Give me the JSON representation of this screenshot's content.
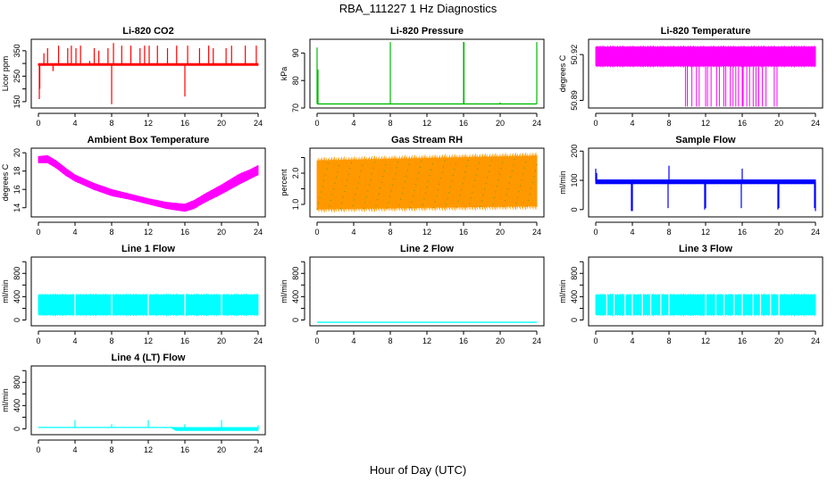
{
  "figure": {
    "title": "RBA_111227  1 Hz Diagnostics",
    "xlabel": "Hour of Day (UTC)"
  },
  "chart_data": [
    {
      "type": "line",
      "title": "Li-820 CO2",
      "ylabel": "Licor ppm",
      "color": "#ff0000",
      "xlim": [
        0,
        24
      ],
      "xticks": [
        0,
        4,
        8,
        12,
        16,
        20,
        24
      ],
      "ylim": [
        125,
        395
      ],
      "yticks": [
        150,
        200,
        250,
        300,
        350
      ],
      "ytick_labels": [
        "150",
        "250",
        "350"
      ],
      "series": [
        {
          "style": "band",
          "x": [
            0,
            24
          ],
          "low": [
            292,
            292
          ],
          "high": [
            300,
            300
          ]
        }
      ],
      "spikes": [
        [
          0.1,
          160
        ],
        [
          0.15,
          200
        ],
        [
          0.6,
          340
        ],
        [
          1.0,
          360
        ],
        [
          1.6,
          270
        ],
        [
          2.2,
          370
        ],
        [
          3.2,
          360
        ],
        [
          3.6,
          370
        ],
        [
          4.1,
          360
        ],
        [
          4.6,
          370
        ],
        [
          5.6,
          310
        ],
        [
          6.1,
          360
        ],
        [
          6.6,
          350
        ],
        [
          7.6,
          360
        ],
        [
          8.0,
          140
        ],
        [
          8.2,
          380
        ],
        [
          9.1,
          370
        ],
        [
          10.1,
          370
        ],
        [
          11.1,
          360
        ],
        [
          11.6,
          370
        ],
        [
          12.1,
          370
        ],
        [
          13.0,
          370
        ],
        [
          14.1,
          360
        ],
        [
          15.1,
          370
        ],
        [
          16.0,
          170
        ],
        [
          16.3,
          370
        ],
        [
          17.6,
          360
        ],
        [
          18.6,
          370
        ],
        [
          19.1,
          360
        ],
        [
          20.5,
          360
        ],
        [
          21.1,
          370
        ],
        [
          22.6,
          370
        ],
        [
          23.8,
          370
        ]
      ]
    },
    {
      "type": "line",
      "title": "Li-820 Pressure",
      "ylabel": "kPa",
      "color": "#00bb00",
      "xlim": [
        0,
        24
      ],
      "xticks": [
        0,
        4,
        8,
        12,
        16,
        20,
        24
      ],
      "ylim": [
        70,
        95
      ],
      "yticks": [
        70,
        80,
        90
      ],
      "ytick_labels": [
        "70",
        "80",
        "90"
      ],
      "series": [
        {
          "style": "line",
          "x": [
            0,
            24
          ],
          "y": [
            71.5,
            71.5
          ]
        }
      ],
      "spikes": [
        [
          0,
          92
        ],
        [
          0.1,
          84
        ],
        [
          8.0,
          94
        ],
        [
          16.0,
          94
        ],
        [
          16.05,
          94
        ],
        [
          20.0,
          72
        ],
        [
          24.0,
          94
        ]
      ]
    },
    {
      "type": "line",
      "title": "Li-820 Temperature",
      "ylabel": "degrees C",
      "color": "#ff00ff",
      "xlim": [
        0,
        24
      ],
      "xticks": [
        0,
        4,
        8,
        12,
        16,
        20,
        24
      ],
      "ylim": [
        50.885,
        50.93
      ],
      "yticks": [
        50.89,
        50.92
      ],
      "ytick_labels": [
        "50.89",
        "50.92"
      ],
      "series": [
        {
          "style": "band",
          "x": [
            0,
            24
          ],
          "low": [
            50.9125,
            50.9125
          ],
          "high": [
            50.925,
            50.925
          ]
        }
      ],
      "dips_to": 50.886,
      "dips": [
        9.8,
        10.0,
        10.5,
        11.0,
        11.3,
        12.0,
        12.2,
        12.6,
        13.2,
        13.5,
        14.0,
        14.2,
        14.7,
        15.0,
        15.3,
        15.6,
        16.0,
        16.1,
        16.5,
        16.8,
        17.2,
        17.5,
        17.8,
        18.2,
        18.6,
        19.5,
        19.8
      ]
    },
    {
      "type": "line",
      "title": "Ambient Box Temperature",
      "ylabel": "degrees C",
      "color": "#ff00ff",
      "xlim": [
        0,
        24
      ],
      "xticks": [
        0,
        4,
        8,
        12,
        16,
        20,
        24
      ],
      "ylim": [
        13,
        20.5
      ],
      "yticks": [
        14,
        16,
        18,
        20
      ],
      "ytick_labels": [
        "14",
        "16",
        "18",
        "20"
      ],
      "series": [
        {
          "style": "band",
          "x": [
            0,
            1,
            2,
            3,
            4,
            6,
            8,
            10,
            12,
            14,
            16,
            17,
            18,
            20,
            22,
            23,
            24
          ],
          "low": [
            18.9,
            18.9,
            18.3,
            17.5,
            16.9,
            16.0,
            15.3,
            14.9,
            14.4,
            13.9,
            13.6,
            13.9,
            14.5,
            15.5,
            16.6,
            17.1,
            17.6
          ],
          "high": [
            19.6,
            19.7,
            19.1,
            18.3,
            17.6,
            16.7,
            16.0,
            15.5,
            15.0,
            14.6,
            14.4,
            14.8,
            15.4,
            16.5,
            17.7,
            18.1,
            18.6
          ]
        }
      ]
    },
    {
      "type": "scatter",
      "title": "Gas Stream RH",
      "ylabel": "percent",
      "color": "#ff9900",
      "secondary_color": "#999900",
      "xlim": [
        0,
        24
      ],
      "xticks": [
        0,
        4,
        8,
        12,
        16,
        20,
        24
      ],
      "ylim": [
        0.6,
        2.8
      ],
      "yticks": [
        1.0,
        1.5,
        2.0,
        2.5
      ],
      "ytick_labels": [
        "1.0",
        "2.0"
      ],
      "series": [
        {
          "style": "band",
          "x": [
            0,
            24
          ],
          "low": [
            0.85,
            0.95
          ],
          "high": [
            2.4,
            2.55
          ]
        }
      ]
    },
    {
      "type": "line",
      "title": "Sample Flow",
      "ylabel": "ml/min",
      "color": "#0000ff",
      "xlim": [
        0,
        24
      ],
      "xticks": [
        0,
        4,
        8,
        12,
        16,
        20,
        24
      ],
      "ylim": [
        -25,
        210
      ],
      "yticks": [
        0,
        100,
        200
      ],
      "ytick_labels": [
        "0",
        "100",
        "200"
      ],
      "series": [
        {
          "style": "band",
          "x": [
            0,
            24
          ],
          "low": [
            88,
            88
          ],
          "high": [
            102,
            102
          ]
        }
      ],
      "spikes": [
        [
          0,
          140
        ],
        [
          0.1,
          125
        ],
        [
          3.9,
          -5
        ],
        [
          4.0,
          -5
        ],
        [
          7.9,
          5
        ],
        [
          8.0,
          150
        ],
        [
          11.9,
          0
        ],
        [
          12.0,
          5
        ],
        [
          15.9,
          5
        ],
        [
          16.0,
          140
        ],
        [
          19.9,
          0
        ],
        [
          20.0,
          5
        ],
        [
          23.9,
          5
        ],
        [
          24.0,
          -5
        ]
      ]
    },
    {
      "type": "line",
      "title": "Line 1 Flow",
      "ylabel": "ml/min",
      "color": "#00ffff",
      "xlim": [
        0,
        24
      ],
      "xticks": [
        0,
        4,
        8,
        12,
        16,
        20,
        24
      ],
      "ylim": [
        -100,
        1080
      ],
      "yticks": [
        0,
        200,
        400,
        600,
        800,
        1000
      ],
      "ytick_labels": [
        "0",
        "400",
        "800"
      ],
      "series": [
        {
          "style": "band",
          "x": [
            0,
            24
          ],
          "low": [
            90,
            90
          ],
          "high": [
            430,
            430
          ]
        }
      ],
      "gaps": [
        4.0,
        8.0,
        12.0,
        16.0,
        20.0
      ]
    },
    {
      "type": "line",
      "title": "Line 2 Flow",
      "ylabel": "ml/min",
      "color": "#00ffff",
      "xlim": [
        0,
        24
      ],
      "xticks": [
        0,
        4,
        8,
        12,
        16,
        20,
        24
      ],
      "ylim": [
        -100,
        1080
      ],
      "yticks": [
        0,
        200,
        400,
        600,
        800,
        1000
      ],
      "ytick_labels": [
        "0",
        "400",
        "800"
      ],
      "series": [
        {
          "style": "line",
          "x": [
            0,
            24
          ],
          "y": [
            -40,
            -40
          ]
        }
      ]
    },
    {
      "type": "line",
      "title": "Line 3 Flow",
      "ylabel": "ml/min",
      "color": "#00ffff",
      "xlim": [
        0,
        24
      ],
      "xticks": [
        0,
        4,
        8,
        12,
        16,
        20,
        24
      ],
      "ylim": [
        -100,
        1080
      ],
      "yticks": [
        0,
        200,
        400,
        600,
        800,
        1000
      ],
      "ytick_labels": [
        "0",
        "400",
        "800"
      ],
      "series": [
        {
          "style": "band",
          "x": [
            0,
            24
          ],
          "low": [
            90,
            90
          ],
          "high": [
            430,
            430
          ]
        }
      ],
      "gaps": [
        1.2,
        2.0,
        3.2,
        4.0,
        5.1,
        6.0,
        7.1,
        8.0,
        12.0,
        13.1,
        14.0,
        15.1,
        16.0,
        17.2,
        18.0,
        19.1,
        20.0
      ]
    },
    {
      "type": "line",
      "title": "Line 4 (LT) Flow",
      "ylabel": "ml/min",
      "color": "#00ffff",
      "xlim": [
        0,
        24
      ],
      "xticks": [
        0,
        4,
        8,
        12,
        16,
        20,
        24
      ],
      "ylim": [
        -100,
        1080
      ],
      "yticks": [
        0,
        200,
        400,
        600,
        800,
        1000
      ],
      "ytick_labels": [
        "0",
        "400",
        "800"
      ],
      "series": [
        {
          "style": "band",
          "x": [
            0,
            14.5,
            15,
            24
          ],
          "low": [
            20,
            20,
            -30,
            -30
          ],
          "high": [
            30,
            30,
            25,
            25
          ]
        }
      ],
      "spikes": [
        [
          4.0,
          150
        ],
        [
          8.0,
          80
        ],
        [
          12.0,
          150
        ],
        [
          16.0,
          80
        ],
        [
          20.0,
          150
        ],
        [
          24.0,
          60
        ]
      ]
    }
  ]
}
